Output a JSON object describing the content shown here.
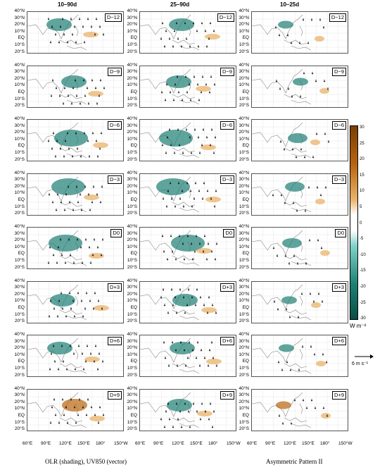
{
  "columns": [
    "10–90d",
    "25–90d",
    "10–25d"
  ],
  "lags": [
    "D−12",
    "D−9",
    "D−6",
    "D−3",
    "D0",
    "D+3",
    "D+6",
    "D+9"
  ],
  "lat_labels": [
    "40°N",
    "30°N",
    "20°N",
    "10°N",
    "EQ",
    "10°S",
    "20°S"
  ],
  "lon_labels": [
    "60°E",
    "90°E",
    "120°E",
    "150°E",
    "180°",
    "150°W"
  ],
  "colorbar": {
    "ticks": [
      "30",
      "25",
      "20",
      "15",
      "10",
      "5",
      "0",
      "-5",
      "-10",
      "-15",
      "-20",
      "-25",
      "-30"
    ],
    "unit": "W m⁻²",
    "positive_color": "#b8650f",
    "negative_color": "#1d7f73"
  },
  "reference_vector": "6 m s⁻¹",
  "footer": {
    "left": "OLR (shading), UV850 (vector)",
    "right": "Asymmetric Pattern II"
  }
}
